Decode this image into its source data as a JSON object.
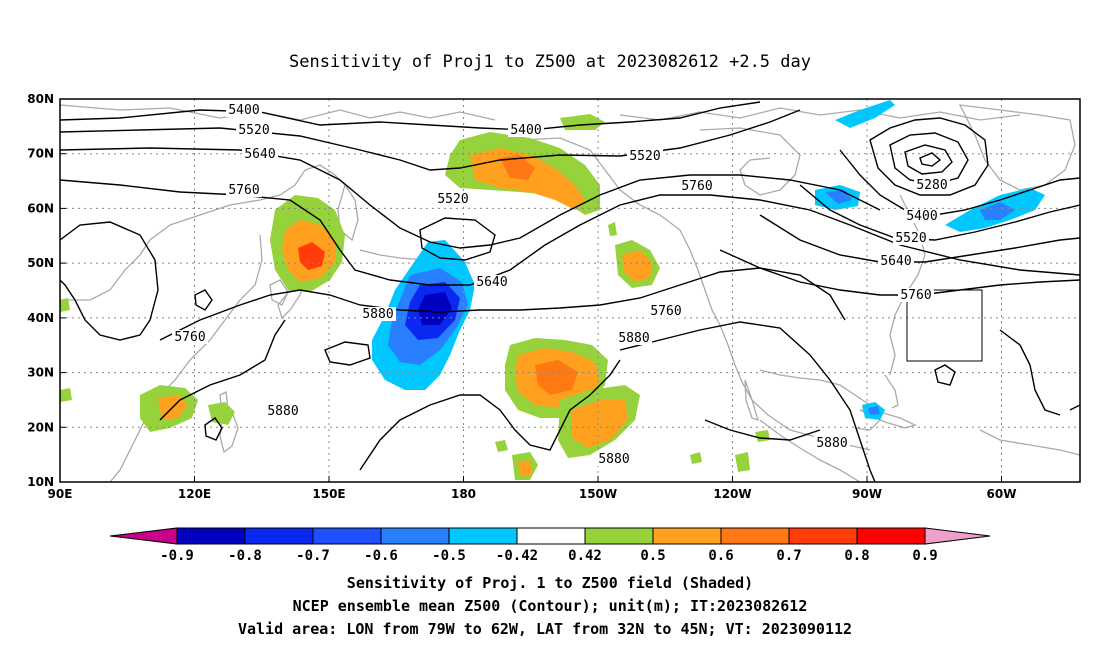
{
  "title": "Sensitivity of Proj1 to Z500 at 2023082612 +2.5 day",
  "lat_labels": [
    "80N",
    "70N",
    "60N",
    "50N",
    "40N",
    "30N",
    "20N",
    "10N"
  ],
  "lon_labels": [
    "90E",
    "120E",
    "150E",
    "180",
    "150W",
    "120W",
    "90W",
    "60W"
  ],
  "colorbar": {
    "labels": [
      "-0.9",
      "-0.8",
      "-0.7",
      "-0.6",
      "-0.5",
      "-0.42",
      "0.42",
      "0.5",
      "0.6",
      "0.7",
      "0.8",
      "0.9"
    ],
    "colors": [
      "#c8008c",
      "#0000c0",
      "#0a28f0",
      "#1e50ff",
      "#2880ff",
      "#00c8ff",
      "#ffffff",
      "#96d23c",
      "#ffa01e",
      "#ff7814",
      "#ff3c0a",
      "#ff0000",
      "#f0a0c8"
    ]
  },
  "contour_labels": [
    "5400",
    "5520",
    "5640",
    "5760",
    "5400",
    "5520",
    "5520",
    "5760",
    "5640",
    "5760",
    "5880",
    "5880",
    "5280",
    "5400",
    "5520",
    "5640",
    "5760",
    "5760",
    "5880",
    "5880",
    "5880"
  ],
  "captions": [
    "Sensitivity of Proj. 1 to Z500 field (Shaded)",
    "NCEP ensemble mean Z500 (Contour); unit(m); IT:2023082612",
    "Valid area: LON from 79W to 62W, LAT from 32N to 45N; VT: 2023090112"
  ]
}
